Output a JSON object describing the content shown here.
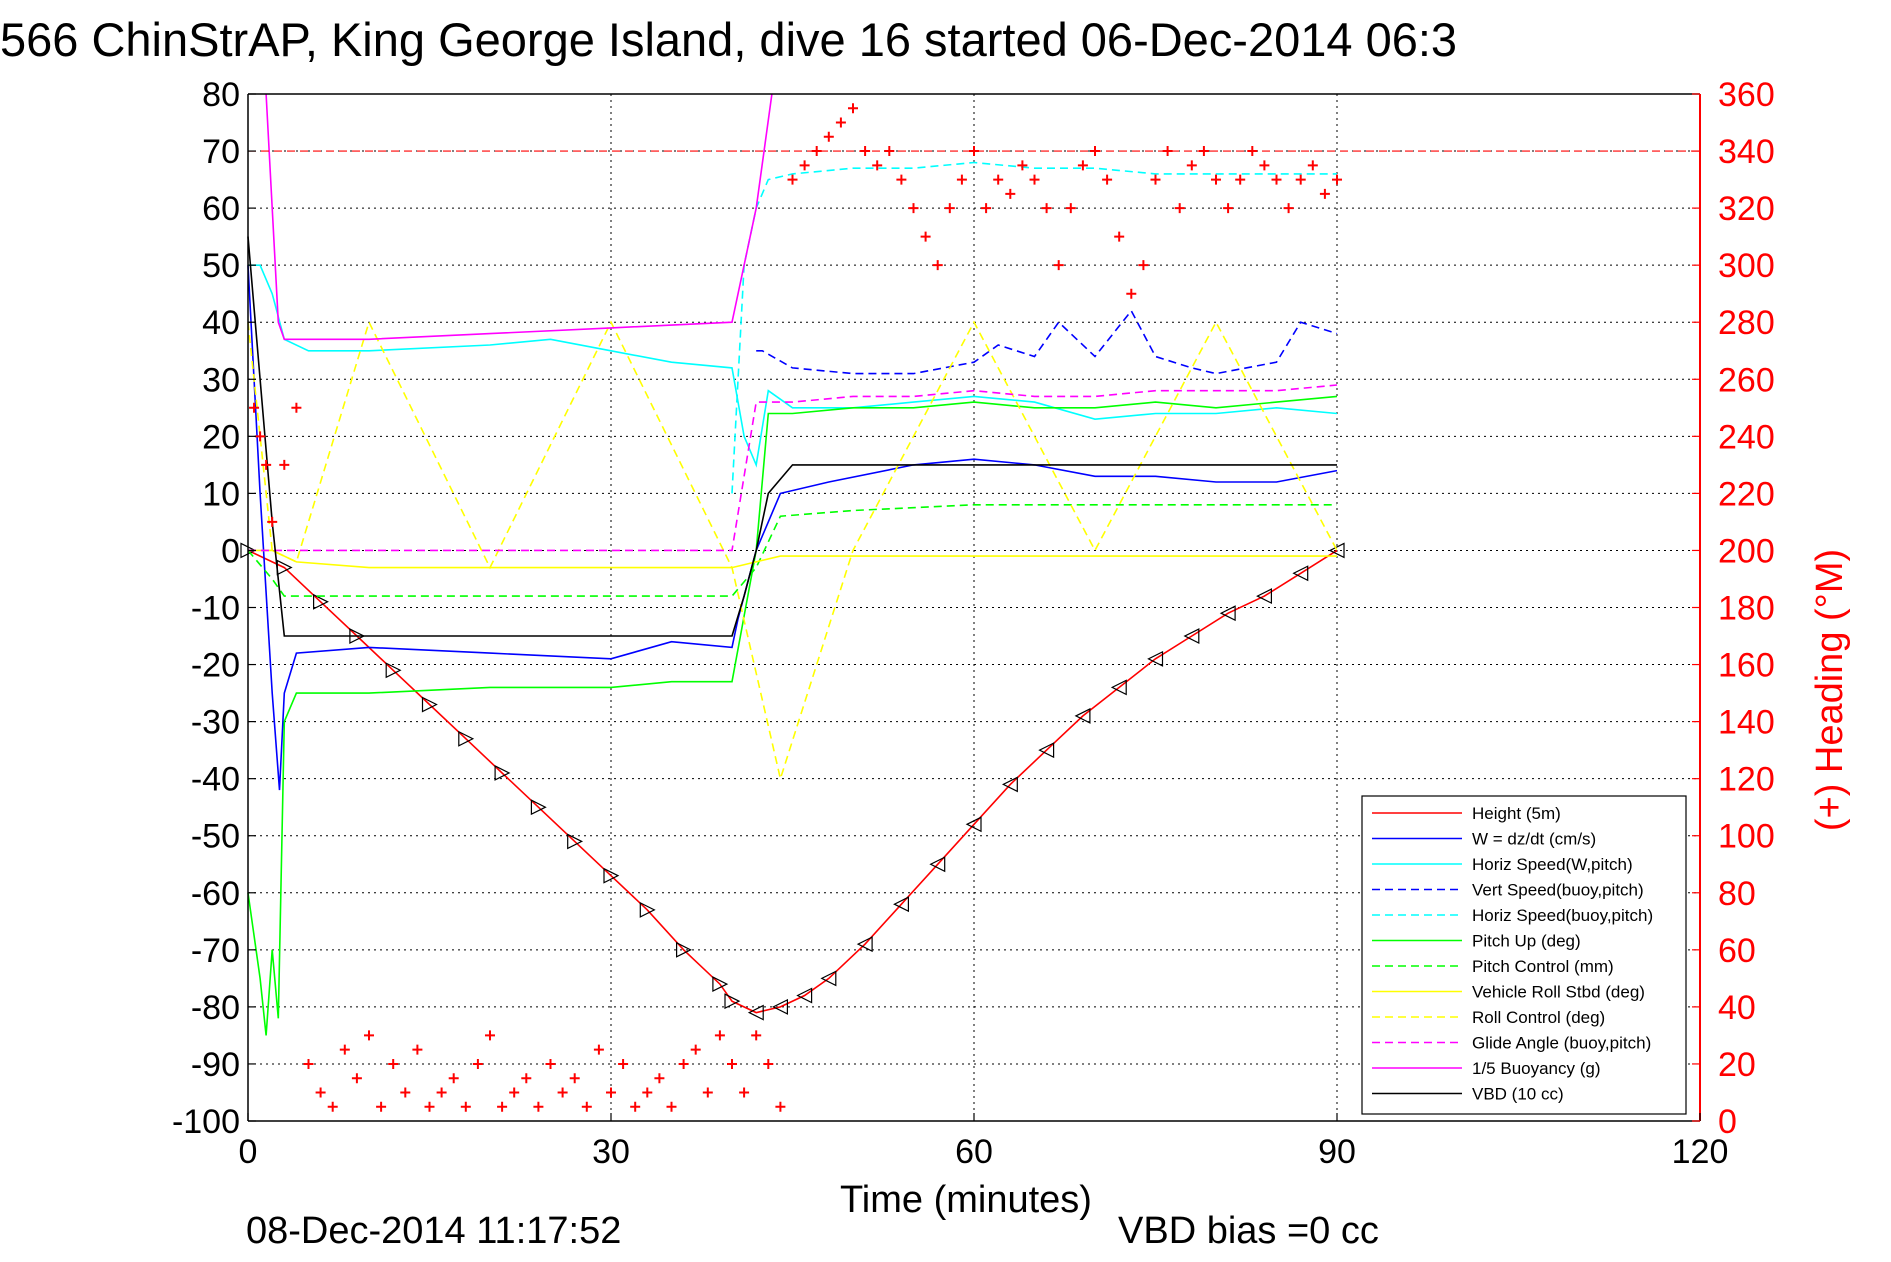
{
  "chart_data": {
    "type": "line",
    "title": "566 ChinStrAP, King George Island, dive 16 started 06-Dec-2014 06:3",
    "xlabel": "Time (minutes)",
    "ylabel": "",
    "y2label": "(+) Heading (°M)",
    "xlim": [
      0,
      120
    ],
    "ylim": [
      -100,
      80
    ],
    "y2lim": [
      0,
      360
    ],
    "xticks": [
      0,
      30,
      60,
      90,
      120
    ],
    "yticks": [
      80,
      70,
      60,
      50,
      40,
      30,
      20,
      10,
      0,
      -10,
      -20,
      -30,
      -40,
      -50,
      -60,
      -70,
      -80,
      -90,
      -100
    ],
    "y2ticks": [
      360,
      340,
      320,
      300,
      280,
      260,
      240,
      220,
      200,
      180,
      160,
      140,
      120,
      100,
      80,
      60,
      40,
      20,
      0
    ],
    "grid": true,
    "legend_position": "bottom-right",
    "footer_left": "08-Dec-2014 11:17:52",
    "footer_right": "VBD bias =0 cc",
    "series": [
      {
        "name": "Height (5m)",
        "color": "#ff0000",
        "style": "solid",
        "marker": "triangle",
        "x": [
          0,
          3,
          6,
          9,
          12,
          15,
          18,
          21,
          24,
          27,
          30,
          33,
          36,
          39,
          40,
          42,
          44,
          46,
          48,
          51,
          54,
          57,
          60,
          63,
          66,
          69,
          72,
          75,
          78,
          81,
          84,
          87,
          90
        ],
        "y": [
          0,
          -3,
          -9,
          -15,
          -21,
          -27,
          -33,
          -39,
          -45,
          -51,
          -57,
          -63,
          -70,
          -76,
          -79,
          -81,
          -80,
          -78,
          -75,
          -69,
          -62,
          -55,
          -48,
          -41,
          -35,
          -29,
          -24,
          -19,
          -15,
          -11,
          -8,
          -4,
          0
        ]
      },
      {
        "name": "W = dz/dt (cm/s)",
        "color": "#0000ff",
        "style": "solid",
        "x": [
          0,
          1,
          2,
          2.6,
          3,
          4,
          10,
          20,
          30,
          35,
          40,
          40.5,
          42,
          43,
          44,
          48,
          55,
          60,
          65,
          70,
          75,
          80,
          85,
          90
        ],
        "y": [
          50,
          10,
          -25,
          -42,
          -25,
          -18,
          -17,
          -18,
          -19,
          -16,
          -17,
          -12,
          0,
          5,
          10,
          12,
          15,
          16,
          15,
          13,
          13,
          12,
          12,
          14
        ]
      },
      {
        "name": "Horiz Speed(W,pitch)",
        "color": "#00ffff",
        "style": "solid",
        "x": [
          0,
          1,
          2,
          3,
          5,
          10,
          20,
          25,
          30,
          35,
          40,
          41,
          42,
          43,
          45,
          50,
          55,
          60,
          65,
          70,
          75,
          80,
          85,
          90
        ],
        "y": [
          50,
          50,
          45,
          37,
          35,
          35,
          36,
          37,
          35,
          33,
          32,
          20,
          15,
          28,
          25,
          25,
          26,
          27,
          26,
          23,
          24,
          24,
          25,
          24
        ]
      },
      {
        "name": "Vert Speed(buoy,pitch)",
        "color": "#0000ff",
        "style": "dashed",
        "x": [
          42,
          42.5,
          45,
          50,
          55,
          60,
          62,
          65,
          67,
          70,
          73,
          75,
          78,
          80,
          85,
          87,
          90
        ],
        "y": [
          35,
          35,
          32,
          31,
          31,
          33,
          36,
          34,
          40,
          34,
          42,
          34,
          32,
          31,
          33,
          40,
          38
        ]
      },
      {
        "name": "Horiz Speed(buoy,pitch)",
        "color": "#00ffff",
        "style": "dashed",
        "x": [
          40,
          41,
          42,
          43,
          45,
          50,
          55,
          60,
          65,
          70,
          75,
          80,
          85,
          90
        ],
        "y": [
          10,
          50,
          60,
          65,
          66,
          67,
          67,
          68,
          67,
          67,
          66,
          66,
          66,
          66
        ]
      },
      {
        "name": "Pitch Up (deg)",
        "color": "#00ff00",
        "style": "solid",
        "x": [
          0,
          1,
          1.5,
          2,
          2.5,
          3,
          4,
          10,
          20,
          30,
          35,
          40,
          42,
          43,
          45,
          50,
          55,
          60,
          65,
          70,
          75,
          80,
          85,
          90
        ],
        "y": [
          -60,
          -75,
          -85,
          -70,
          -82,
          -30,
          -25,
          -25,
          -24,
          -24,
          -23,
          -23,
          0,
          24,
          24,
          25,
          25,
          26,
          25,
          25,
          26,
          25,
          26,
          27
        ]
      },
      {
        "name": "Pitch Control (mm)",
        "color": "#00ff00",
        "style": "dashed",
        "x": [
          0,
          2,
          3,
          10,
          20,
          30,
          40,
          42,
          44,
          50,
          60,
          70,
          80,
          90
        ],
        "y": [
          0,
          -5,
          -8,
          -8,
          -8,
          -8,
          -8,
          -3,
          6,
          7,
          8,
          8,
          8,
          8
        ]
      },
      {
        "name": "Vehicle Roll Stbd (deg)",
        "color": "#ffff00",
        "style": "solid",
        "x": [
          0,
          2,
          4,
          10,
          20,
          30,
          40,
          44,
          50,
          60,
          70,
          80,
          90
        ],
        "y": [
          0,
          0,
          -2,
          -3,
          -3,
          -3,
          -3,
          -1,
          -1,
          -1,
          -1,
          -1,
          -1
        ]
      },
      {
        "name": "Roll Control (deg)",
        "color": "#ffff00",
        "style": "dashed",
        "x": [
          0,
          2,
          4,
          10,
          20,
          30,
          40,
          44,
          50,
          60,
          70,
          80,
          90
        ],
        "y": [
          40,
          0,
          -2,
          40,
          -3,
          40,
          -3,
          -40,
          0,
          40,
          0,
          40,
          0
        ]
      },
      {
        "name": "Glide Angle (buoy,pitch)",
        "color": "#ff00ff",
        "style": "dashed",
        "x": [
          0,
          40,
          42,
          45,
          50,
          55,
          60,
          65,
          70,
          75,
          80,
          85,
          90
        ],
        "y": [
          0,
          0,
          26,
          26,
          27,
          27,
          28,
          27,
          27,
          28,
          28,
          28,
          29
        ]
      },
      {
        "name": "1/5 Buoyancy (g)",
        "color": "#ff00ff",
        "style": "solid",
        "x": [
          1.5,
          2,
          2.5,
          3,
          10,
          20,
          30,
          40,
          42,
          43.3
        ],
        "y": [
          80,
          60,
          40,
          37,
          37,
          38,
          39,
          40,
          60,
          80
        ]
      },
      {
        "name": "VBD (10 cc)",
        "color": "#000000",
        "style": "solid",
        "x": [
          0,
          1,
          2,
          3,
          10,
          20,
          30,
          40,
          41,
          42,
          43,
          45,
          50,
          55,
          60,
          70,
          80,
          90
        ],
        "y": [
          55,
          30,
          5,
          -15,
          -15,
          -15,
          -15,
          -15,
          -8,
          0,
          10,
          15,
          15,
          15,
          15,
          15,
          15,
          15
        ]
      }
    ],
    "heading_series": {
      "name": "(+) Heading",
      "color": "#ff0000",
      "marker": "plus",
      "axis": "right",
      "reference_line": 340,
      "x": [
        0.5,
        1,
        1.5,
        2,
        3,
        4,
        5,
        6,
        7,
        8,
        9,
        10,
        11,
        12,
        13,
        14,
        15,
        16,
        17,
        18,
        19,
        20,
        21,
        22,
        23,
        24,
        25,
        26,
        27,
        28,
        29,
        30,
        31,
        32,
        33,
        34,
        35,
        36,
        37,
        38,
        39,
        40,
        41,
        42,
        43,
        44,
        45,
        46,
        47,
        48,
        49,
        50,
        51,
        52,
        53,
        54,
        55,
        56,
        57,
        58,
        59,
        60,
        61,
        62,
        63,
        64,
        65,
        66,
        67,
        68,
        69,
        70,
        71,
        72,
        73,
        74,
        75,
        76,
        77,
        78,
        79,
        80,
        81,
        82,
        83,
        84,
        85,
        86,
        87,
        88,
        89,
        90
      ],
      "y": [
        250,
        240,
        230,
        210,
        230,
        250,
        20,
        10,
        5,
        25,
        15,
        30,
        5,
        20,
        10,
        25,
        5,
        10,
        15,
        5,
        20,
        30,
        5,
        10,
        15,
        5,
        20,
        10,
        15,
        5,
        25,
        10,
        20,
        5,
        10,
        15,
        5,
        20,
        25,
        10,
        30,
        20,
        10,
        30,
        20,
        5,
        330,
        335,
        340,
        345,
        350,
        355,
        340,
        335,
        340,
        330,
        320,
        310,
        300,
        320,
        330,
        340,
        320,
        330,
        325,
        335,
        330,
        320,
        300,
        320,
        335,
        340,
        330,
        310,
        290,
        300,
        330,
        340,
        320,
        335,
        340,
        330,
        320,
        330,
        340,
        335,
        330,
        320,
        330,
        335,
        325,
        330
      ]
    },
    "markers_note": ""
  }
}
